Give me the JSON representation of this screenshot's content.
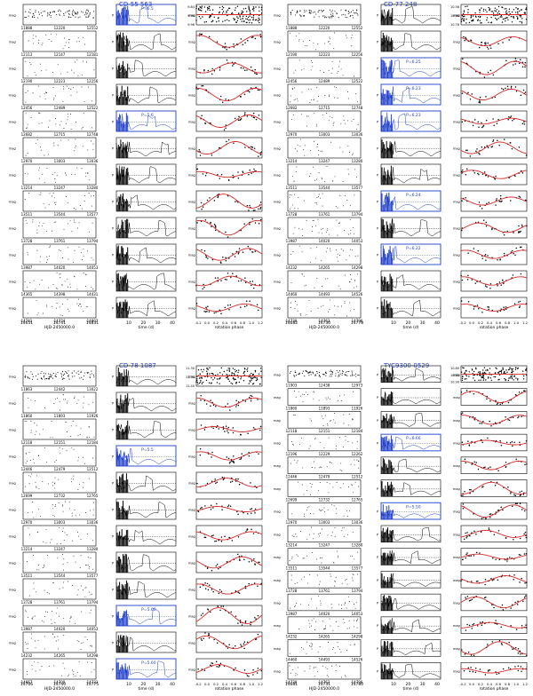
{
  "chart_data": [
    {
      "type": "scatter",
      "title": "CD-55 563",
      "star": "CD-55 563",
      "rows": 12,
      "periodogram_labels": [
        "P=6.5",
        "",
        "",
        "",
        "P=5.6",
        "",
        "",
        "",
        "",
        "",
        "",
        ""
      ],
      "photometry_ticks": [
        [
          "11888",
          "12220",
          "12552"
        ],
        [
          "12113",
          "12147",
          "12181"
        ],
        [
          "12190",
          "12223",
          "12256"
        ],
        [
          "12456",
          "12489",
          "12522"
        ],
        [
          "12682",
          "12715",
          "12748"
        ],
        [
          "12970",
          "13003",
          "13036"
        ],
        [
          "13214",
          "13247",
          "13280"
        ],
        [
          "13511",
          "13544",
          "13577"
        ],
        [
          "13728",
          "13761",
          "13794"
        ],
        [
          "13987",
          "14020",
          "14053"
        ],
        [
          "14365",
          "14398",
          "14431"
        ],
        [
          "14741",
          "14774",
          "14807"
        ]
      ],
      "x_axis_time": [
        "14651",
        "14741",
        "14831"
      ],
      "xlabel_time": "HJD-2450000.0",
      "x_axis_period": [
        "10",
        "20",
        "30",
        "40"
      ],
      "xlabel_period": "time (d)",
      "x_axis_phase": [
        "-0.2",
        "0.0",
        "0.2",
        "0.4",
        "0.6",
        "0.8",
        "1.0",
        "1.2"
      ],
      "xlabel_phase": "rotation phase",
      "mag_ticks": [
        "9.84",
        "9.90",
        "9.96"
      ]
    },
    {
      "type": "scatter",
      "title": "CD-77 248",
      "star": "CD-77 248",
      "rows": 12,
      "periodogram_labels": [
        "",
        "",
        "P=6.25",
        "P=6.23",
        "P=6.23",
        "",
        "",
        "P=6.24",
        "",
        "P=6.22",
        "",
        ""
      ],
      "photometry_ticks": [
        [
          "11888",
          "12220",
          "12552"
        ],
        [
          "12190",
          "12223",
          "12256"
        ],
        [
          "12456",
          "12489",
          "12522"
        ],
        [
          "12682",
          "12715",
          "12748"
        ],
        [
          "12970",
          "13003",
          "13036"
        ],
        [
          "13214",
          "13247",
          "13280"
        ],
        [
          "13511",
          "13544",
          "13577"
        ],
        [
          "13728",
          "13761",
          "13794"
        ],
        [
          "13987",
          "14020",
          "14053"
        ],
        [
          "14232",
          "14265",
          "14298"
        ],
        [
          "14460",
          "14493",
          "14526"
        ],
        [
          "14730",
          "14763",
          "14796"
        ]
      ],
      "x_axis_time": [
        "14682",
        "14730",
        "14778"
      ],
      "xlabel_time": "HJD-2450000.0",
      "x_axis_period": [
        "10",
        "20",
        "30",
        "40"
      ],
      "xlabel_period": "time (d)",
      "x_axis_phase": [
        "-0.2",
        "0.0",
        "0.2",
        "0.4",
        "0.6",
        "0.8",
        "1.0",
        "1.2"
      ],
      "xlabel_phase": "rotation phase",
      "mag_ticks": [
        "10.58",
        "10.68",
        "10.78"
      ]
    },
    {
      "type": "scatter",
      "title": "CD-78 1087",
      "star": "CD-78 1087",
      "rows": 12,
      "periodogram_labels": [
        "",
        "",
        "",
        "P=5.5",
        "",
        "",
        "",
        "",
        "",
        "P=5.60",
        "",
        "P=5.60"
      ],
      "photometry_ticks": [
        [
          "11863",
          "12442",
          "13022"
        ],
        [
          "11860",
          "11893",
          "11926"
        ],
        [
          "12118",
          "12151",
          "12184"
        ],
        [
          "12446",
          "12479",
          "12512"
        ],
        [
          "12699",
          "12732",
          "12765"
        ],
        [
          "12970",
          "13003",
          "13036"
        ],
        [
          "13214",
          "13247",
          "13280"
        ],
        [
          "13511",
          "13544",
          "13577"
        ],
        [
          "13728",
          "13761",
          "13794"
        ],
        [
          "13987",
          "14020",
          "14053"
        ],
        [
          "14232",
          "14265",
          "14298"
        ],
        [
          "14667",
          "14700",
          "14733"
        ]
      ],
      "x_axis_time": [
        "14706",
        "14740",
        "14775"
      ],
      "xlabel_time": "HJD-2450000.0",
      "x_axis_period": [
        "10",
        "20",
        "30",
        "40"
      ],
      "xlabel_period": "time (d)",
      "x_axis_phase": [
        "-0.2",
        "0.0",
        "0.2",
        "0.4",
        "0.6",
        "0.8",
        "1.0",
        "1.2"
      ],
      "xlabel_phase": "rotation phase",
      "mag_ticks": [
        "11.30",
        "11.35",
        "11.40"
      ]
    },
    {
      "type": "scatter",
      "title": "TYC9300-0529",
      "star": "TYC9300-0529",
      "rows": 14,
      "periodogram_labels": [
        "",
        "",
        "",
        "P=6.66",
        "",
        "",
        "P=5.50",
        "",
        "",
        "",
        "",
        "",
        "",
        ""
      ],
      "photometry_ticks": [
        [
          "11903",
          "12438",
          "12973"
        ],
        [
          "11860",
          "11893",
          "11926"
        ],
        [
          "12118",
          "12151",
          "12184"
        ],
        [
          "12196",
          "12229",
          "12262"
        ],
        [
          "12446",
          "12479",
          "12512"
        ],
        [
          "12699",
          "12732",
          "12765"
        ],
        [
          "12970",
          "13003",
          "13036"
        ],
        [
          "13214",
          "13247",
          "13280"
        ],
        [
          "13511",
          "13544",
          "13577"
        ],
        [
          "13728",
          "13761",
          "13794"
        ],
        [
          "13987",
          "14020",
          "14053"
        ],
        [
          "14232",
          "14265",
          "14298"
        ],
        [
          "14460",
          "14493",
          "14526"
        ],
        [
          "14730",
          "14763",
          "14796"
        ]
      ],
      "x_axis_time": [
        "14681",
        "14731",
        "14780"
      ],
      "xlabel_time": "HJD-2450000.0",
      "x_axis_period": [
        "10",
        "20",
        "30",
        "40"
      ],
      "xlabel_period": "time (d)",
      "x_axis_phase": [
        "-0.2",
        "0.0",
        "0.2",
        "0.4",
        "0.6",
        "0.8",
        "1.0",
        "1.2"
      ],
      "xlabel_phase": "rotation phase",
      "mag_ticks": [
        "10.80",
        "10.85",
        "10.90"
      ]
    }
  ],
  "colors": {
    "axis": "#000000",
    "points": "#000000",
    "fit": "#d42a2a",
    "highlight": "#1f3ec9"
  }
}
